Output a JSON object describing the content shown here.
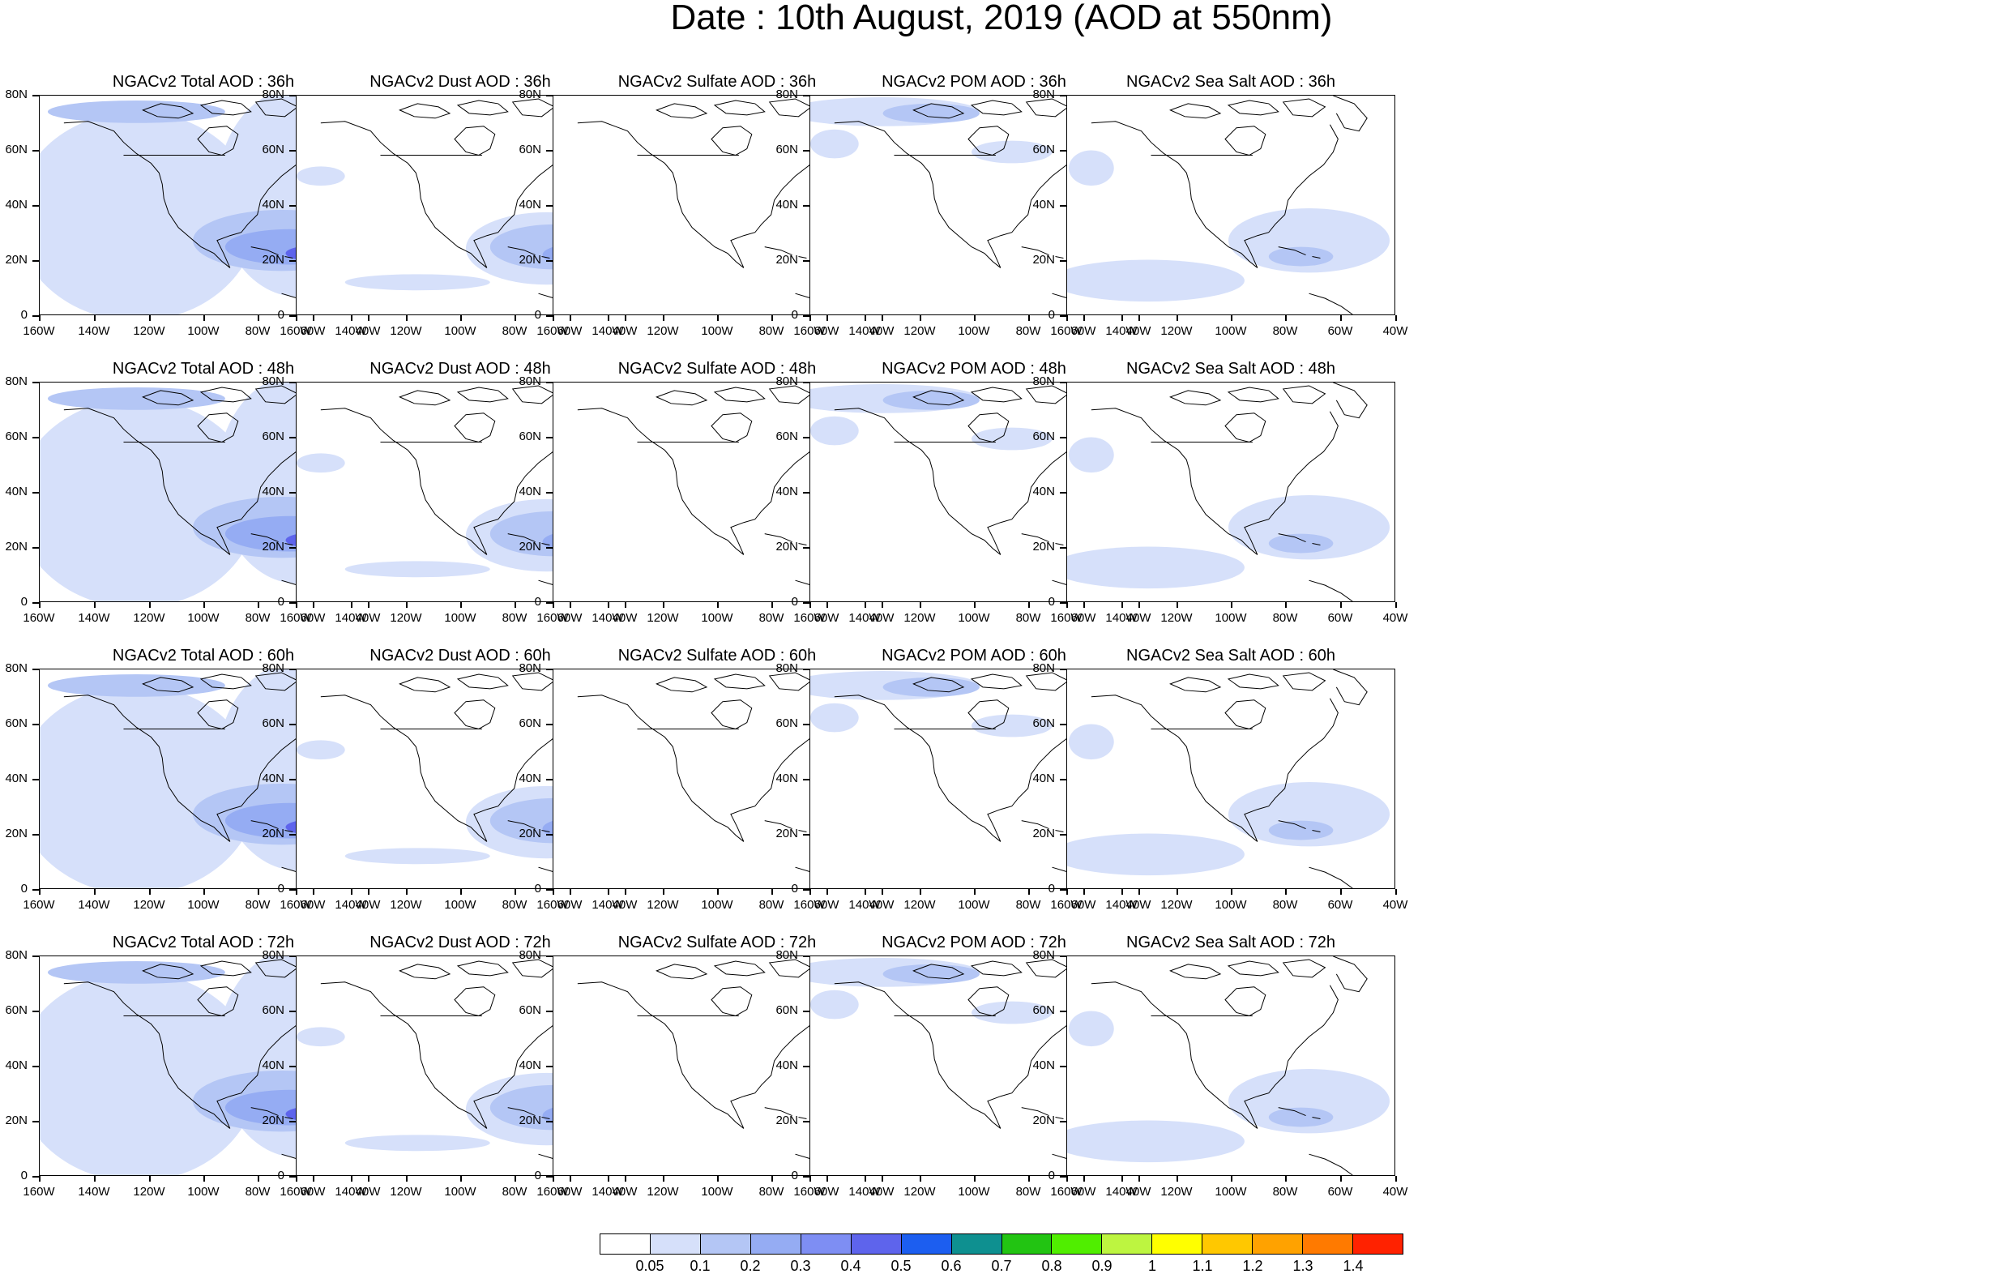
{
  "title": "Date : 10th August, 2019 (AOD at 550nm)",
  "axes": {
    "y_labels": [
      "80N",
      "60N",
      "40N",
      "20N",
      "0"
    ],
    "x_labels": [
      "160W",
      "140W",
      "120W",
      "100W",
      "80W",
      "60W",
      "40W"
    ]
  },
  "panel_titles": [
    [
      "NGACv2 Total AOD : 36h",
      "NGACv2 Dust AOD : 36h",
      "NGACv2 Sulfate AOD : 36h",
      "NGACv2 POM AOD : 36h",
      "NGACv2 Sea Salt AOD : 36h"
    ],
    [
      "NGACv2 Total AOD : 48h",
      "NGACv2 Dust AOD : 48h",
      "NGACv2 Sulfate AOD : 48h",
      "NGACv2 POM AOD : 48h",
      "NGACv2 Sea Salt AOD : 48h"
    ],
    [
      "NGACv2 Total AOD : 60h",
      "NGACv2 Dust AOD : 60h",
      "NGACv2 Sulfate AOD : 60h",
      "NGACv2 POM AOD : 60h",
      "NGACv2 Sea Salt AOD : 60h"
    ],
    [
      "NGACv2 Total AOD : 72h",
      "NGACv2 Dust AOD : 72h",
      "NGACv2 Sulfate AOD : 72h",
      "NGACv2 POM AOD : 72h",
      "NGACv2 Sea Salt  AOD : 72h"
    ]
  ],
  "colorbar": {
    "labels": [
      "0.05",
      "0.1",
      "0.2",
      "0.3",
      "0.4",
      "0.5",
      "0.6",
      "0.7",
      "0.8",
      "0.9",
      "1",
      "1.1",
      "1.2",
      "1.3",
      "1.4"
    ],
    "colors": [
      "#ffffff",
      "#d6e0fa",
      "#b4c6f5",
      "#95acf3",
      "#7e8ef3",
      "#5e64ec",
      "#1c5ef0",
      "#0e9090",
      "#22c412",
      "#50ee00",
      "#bdf540",
      "#ffff00",
      "#ffc800",
      "#ffa200",
      "#ff7a00",
      "#ff2200"
    ]
  },
  "colors": {
    "aod_light": "#d6e0fa",
    "aod_medium": "#b4c6f5",
    "aod_high": "#95acf3",
    "aod_peak": "#5e64ec",
    "coastline": "#000000"
  }
}
